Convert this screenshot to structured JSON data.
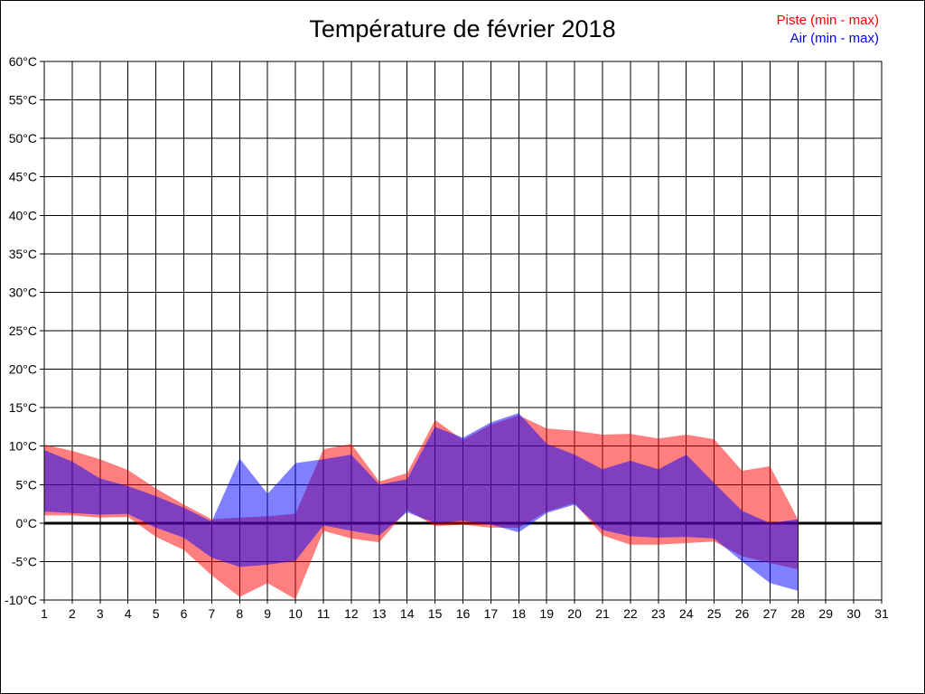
{
  "title": "Température de février 2018",
  "legend": [
    {
      "label": "Piste (min - max)",
      "color": "#ff0000"
    },
    {
      "label": "Air (min - max)",
      "color": "#0000ff"
    }
  ],
  "chart_data": {
    "type": "area",
    "subtype": "min-max-range-bands",
    "title": "Température de février 2018",
    "xlabel": "",
    "ylabel": "",
    "x_days": [
      1,
      2,
      3,
      4,
      5,
      6,
      7,
      8,
      9,
      10,
      11,
      12,
      13,
      14,
      15,
      16,
      17,
      18,
      19,
      20,
      21,
      22,
      23,
      24,
      25,
      26,
      27,
      28
    ],
    "series": [
      {
        "name": "Piste (min - max)",
        "color": "#ff0000",
        "fill_opacity": 0.5,
        "min": [
          1.0,
          1.0,
          0.7,
          0.8,
          -1.8,
          -3.5,
          -6.8,
          -9.6,
          -7.8,
          -9.9,
          -1.0,
          -2.0,
          -2.5,
          1.7,
          -0.4,
          -0.2,
          -0.6,
          -0.6,
          1.5,
          2.6,
          -1.6,
          -2.8,
          -2.8,
          -2.6,
          -2.4,
          -4.3,
          -5.2,
          -6.0
        ],
        "max": [
          10.2,
          9.4,
          8.3,
          6.9,
          4.5,
          2.4,
          0.5,
          0.7,
          0.9,
          1.2,
          9.6,
          10.3,
          5.4,
          6.5,
          13.4,
          10.8,
          12.8,
          14.0,
          12.3,
          12.0,
          11.5,
          11.6,
          11.0,
          11.5,
          10.9,
          6.8,
          7.4,
          0.5
        ]
      },
      {
        "name": "Air (min - max)",
        "color": "#0000ff",
        "fill_opacity": 0.5,
        "min": [
          1.5,
          1.3,
          1.1,
          1.2,
          -0.6,
          -1.9,
          -4.5,
          -5.7,
          -5.4,
          -4.9,
          -0.3,
          -1.0,
          -1.6,
          1.4,
          0.0,
          0.3,
          -0.2,
          -1.2,
          1.3,
          2.4,
          -0.9,
          -1.7,
          -1.9,
          -1.8,
          -2.0,
          -5.0,
          -7.8,
          -8.8
        ],
        "max": [
          9.5,
          8.0,
          5.8,
          4.8,
          3.5,
          2.0,
          0.2,
          8.4,
          3.8,
          7.8,
          8.3,
          8.9,
          5.0,
          5.7,
          12.5,
          11.1,
          13.1,
          14.3,
          10.3,
          8.9,
          7.0,
          8.1,
          7.0,
          8.9,
          5.2,
          1.6,
          0.0,
          0.5
        ]
      }
    ],
    "xlim": [
      1,
      31
    ],
    "x_tick_labels": [
      "1",
      "2",
      "3",
      "4",
      "5",
      "6",
      "7",
      "8",
      "9",
      "10",
      "11",
      "12",
      "13",
      "14",
      "15",
      "16",
      "17",
      "18",
      "19",
      "20",
      "21",
      "22",
      "23",
      "24",
      "25",
      "26",
      "27",
      "28",
      "29",
      "30",
      "31"
    ],
    "ylim": [
      -10,
      60
    ],
    "ytick_step": 5,
    "ytick_suffix": "°C",
    "grid": true,
    "zero_line_emphasized": true,
    "legend_position": "top-right",
    "grid_color": "#000000",
    "axis_color": "#000000",
    "tick_label_color": "#000000"
  }
}
